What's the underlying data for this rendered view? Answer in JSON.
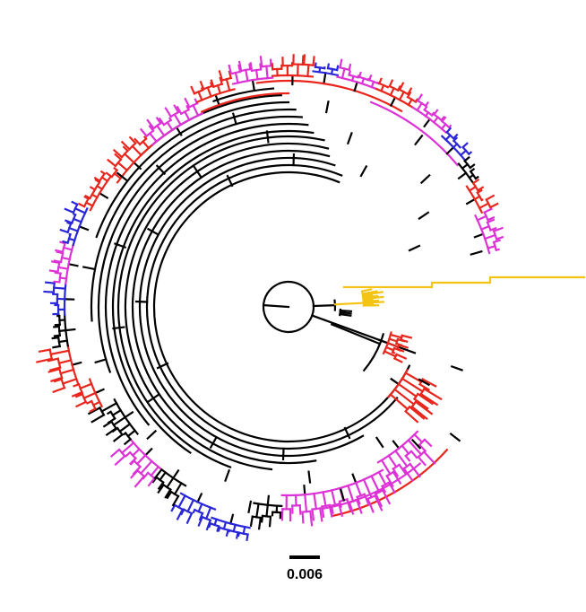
{
  "scale_bar": {
    "label": "0.006",
    "value": 0.006
  },
  "palette": {
    "black": "#000000",
    "red": "#e8261d",
    "magenta": "#dd33d6",
    "blue": "#2a27d8",
    "yellow": "#f4c414"
  },
  "clade_colors": [
    "yellow",
    "red",
    "magenta",
    "blue",
    "black"
  ]
}
